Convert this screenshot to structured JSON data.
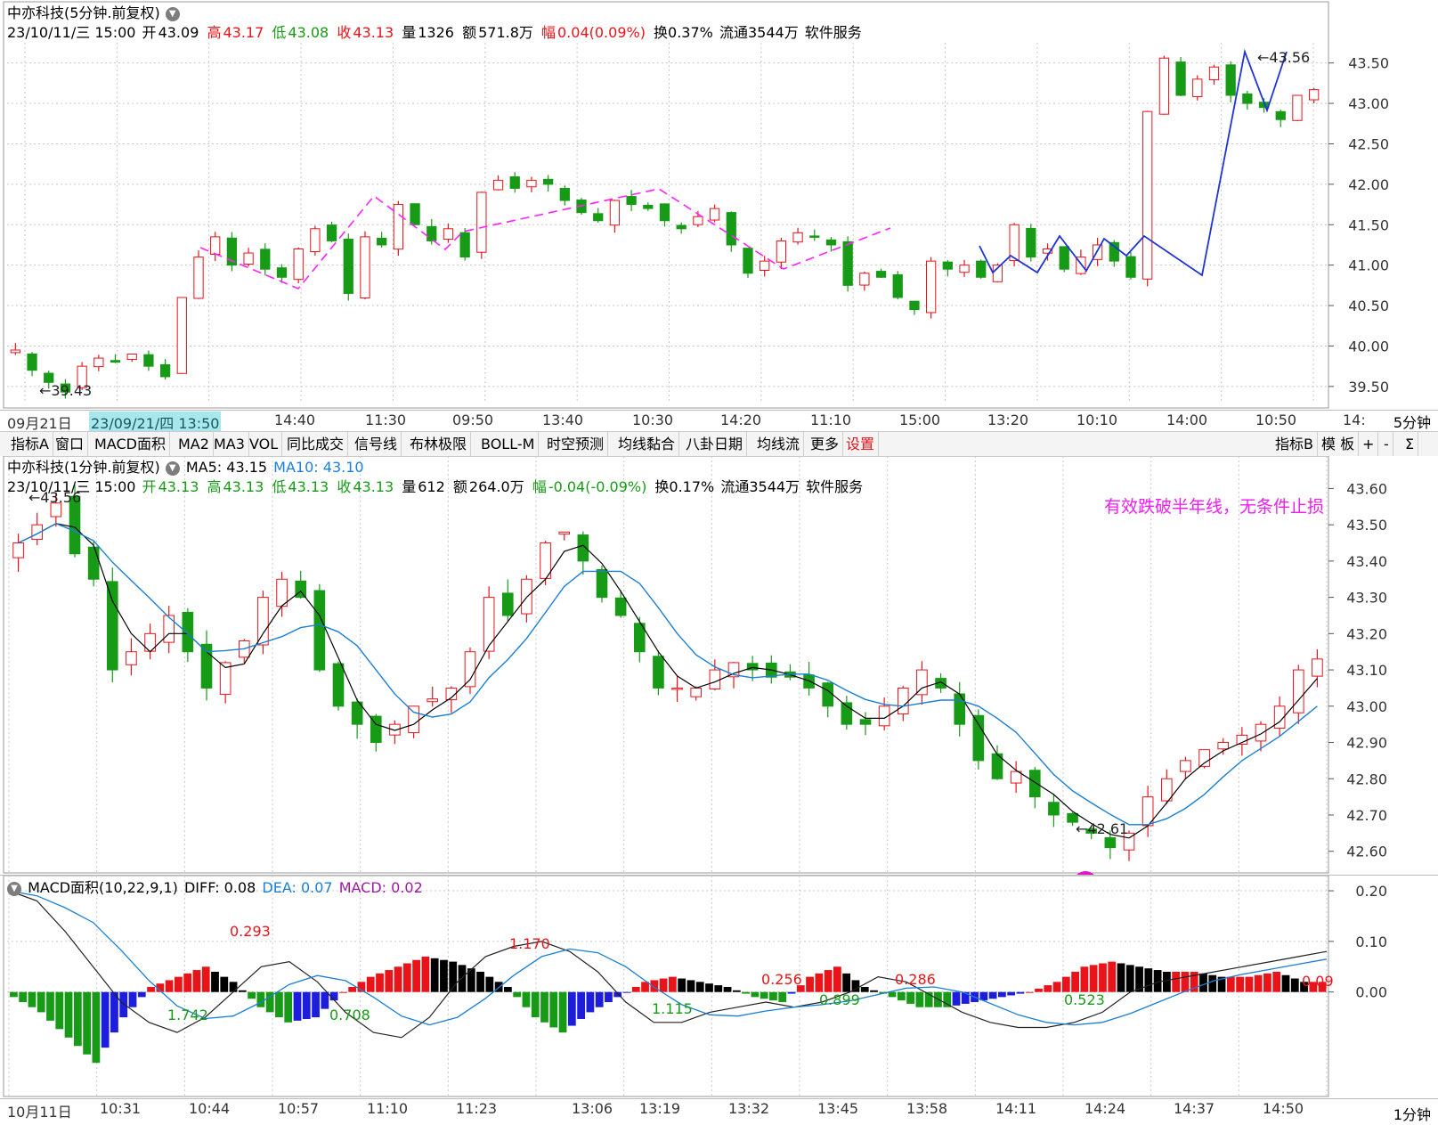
{
  "top_panel": {
    "title": "中亦科技(5分钟.前复权)",
    "info": {
      "date": "23/10/11/三 15:00",
      "open_label": "开",
      "open": "43.09",
      "high_label": "高",
      "high": "43.17",
      "low_label": "低",
      "low": "43.08",
      "close_label": "收",
      "close": "43.13",
      "vol_label": "量",
      "vol": "1326",
      "amt_label": "额",
      "amt": "571.8万",
      "chg_label": "幅",
      "chg": "0.04(0.09%)",
      "turn": "换0.37%",
      "float": "流通3544万",
      "sector": "软件服务"
    },
    "y_ticks": [
      "43.50",
      "43.00",
      "42.50",
      "42.00",
      "41.50",
      "41.00",
      "40.50",
      "40.00",
      "39.50"
    ],
    "high_mark": "43.56",
    "low_mark": "39.43",
    "x_labels": [
      "09月21日",
      "23/09/21/四 13:50",
      "14:40",
      "11:30",
      "09:50",
      "13:40",
      "10:30",
      "14:20",
      "11:10",
      "15:00",
      "13:20",
      "10:10",
      "14:00",
      "10:50",
      "14:"
    ],
    "period": "5分钟"
  },
  "toolbar": {
    "left": [
      "指标A",
      "窗口",
      "MACD面积",
      "MA2",
      "MA3",
      "VOL",
      "同比成交",
      "信号线",
      "布林极限",
      "BOLL-M",
      "时空预测",
      "均线黏合",
      "八卦日期",
      "均线流",
      "更多",
      "设置"
    ],
    "right": [
      "指标B",
      "模 板",
      "+",
      "-",
      "Σ"
    ]
  },
  "mid_panel": {
    "title": "中亦科技(1分钟.前复权)",
    "ma5_label": "MA5: 43.15",
    "ma10_label": "MA10: 43.10",
    "info": {
      "date": "23/10/11/三 15:00",
      "open_label": "开",
      "open": "43.13",
      "high_label": "高",
      "high": "43.13",
      "low_label": "低",
      "low": "43.13",
      "close_label": "收",
      "close": "43.13",
      "vol_label": "量",
      "vol": "612",
      "amt_label": "额",
      "amt": "264.0万",
      "chg_label": "幅",
      "chg": "-0.04(-0.09%)",
      "turn": "换0.17%",
      "float": "流通3544万",
      "sector": "软件服务"
    },
    "annotation": "有效跌破半年线，无条件止损",
    "y_ticks": [
      "43.60",
      "43.50",
      "43.40",
      "43.30",
      "43.20",
      "43.10",
      "43.00",
      "42.90",
      "42.80",
      "42.70",
      "42.60"
    ],
    "high_mark": "43.56",
    "low_mark": "42.61",
    "badge": "1"
  },
  "macd_panel": {
    "label": "MACD面积(10,22,9,1)",
    "diff_label": "DIFF: 0.08",
    "dea_label": "DEA: 0.07",
    "macd_label": "MACD: 0.02",
    "y_ticks": [
      "0.20",
      "0.10",
      "0.00"
    ],
    "area_labels": [
      "0.293",
      "1.742",
      "0.708",
      "1.170",
      "1.115",
      "0.256",
      "0.899",
      "0.286",
      "0.523",
      "0.09"
    ],
    "x_labels": [
      "10月11日",
      "10:31",
      "10:44",
      "10:57",
      "11:10",
      "11:23",
      "13:06",
      "13:19",
      "13:32",
      "13:45",
      "13:58",
      "14:11",
      "14:24",
      "14:37",
      "14:50"
    ],
    "period": "1分钟"
  },
  "colors": {
    "up": "#e8141a",
    "down": "#179b17",
    "ma5": "#000000",
    "ma10": "#1a7fd6",
    "dashed_trend": "#ff22ff",
    "blue_trend": "#1f34d6",
    "macd_neg_blue": "#1d1ddc"
  },
  "chart_data": [
    {
      "type": "candlestick",
      "title": "中亦科技(5分钟.前复权)",
      "ylim": [
        39.3,
        43.75
      ],
      "x_labels": [
        "09月21日",
        "23/09/21/四 13:50",
        "14:40",
        "11:30",
        "09:50",
        "13:40",
        "10:30",
        "14:20",
        "11:10",
        "15:00",
        "13:20",
        "10:10",
        "14:00",
        "10:50",
        "14:"
      ],
      "closes": [
        39.95,
        39.7,
        39.55,
        39.43,
        39.75,
        39.85,
        39.8,
        39.9,
        39.75,
        39.62,
        40.6,
        41.1,
        41.35,
        41.0,
        41.15,
        40.95,
        40.85,
        41.2,
        41.45,
        41.3,
        40.65,
        41.35,
        41.25,
        41.75,
        41.5,
        41.3,
        41.45,
        41.1,
        41.9,
        42.05,
        41.95,
        42.05,
        42.0,
        41.8,
        41.65,
        41.55,
        41.8,
        41.75,
        41.7,
        41.55,
        41.45,
        41.6,
        41.7,
        41.25,
        40.9,
        41.05,
        41.3,
        41.4,
        41.35,
        41.25,
        40.75,
        40.9,
        40.85,
        40.6,
        40.45,
        41.05,
        40.95,
        41.0,
        40.85,
        41.0,
        41.5,
        41.1,
        41.2,
        40.95,
        41.1,
        41.25,
        41.05,
        40.85,
        42.9,
        43.56,
        43.1,
        43.3,
        43.45,
        43.1,
        43.0,
        42.95,
        42.8,
        43.1,
        43.17
      ]
    },
    {
      "type": "candlestick",
      "title": "中亦科技(1分钟.前复权)",
      "ylim": [
        42.56,
        43.66
      ],
      "series": [
        {
          "name": "MA5"
        },
        {
          "name": "MA10"
        }
      ],
      "x_labels": [
        "10月11日",
        "10:31",
        "10:44",
        "10:57",
        "11:10",
        "11:23",
        "13:06",
        "13:19",
        "13:32",
        "13:45",
        "13:58",
        "14:11",
        "14:24",
        "14:37",
        "14:50"
      ],
      "closes": [
        43.45,
        43.5,
        43.56,
        43.42,
        43.35,
        43.1,
        43.15,
        43.2,
        43.25,
        43.15,
        43.05,
        43.12,
        43.18,
        43.3,
        43.35,
        43.3,
        43.1,
        43.0,
        42.95,
        42.9,
        42.95,
        43.0,
        43.02,
        43.05,
        43.15,
        43.3,
        43.25,
        43.35,
        43.45,
        43.48,
        43.4,
        43.3,
        43.25,
        43.15,
        43.05,
        43.05,
        43.05,
        43.1,
        43.12,
        43.1,
        43.08,
        43.08,
        43.05,
        43.0,
        42.95,
        42.95,
        43.0,
        43.05,
        43.1,
        43.05,
        42.95,
        42.85,
        42.8,
        42.82,
        42.75,
        42.7,
        42.68,
        42.65,
        42.61,
        42.65,
        42.75,
        42.8,
        42.85,
        42.88,
        42.9,
        42.92,
        42.95,
        43.0,
        43.1,
        43.13
      ]
    },
    {
      "type": "bar",
      "title": "MACD面积(10,22,9,1)",
      "ylim": [
        -0.21,
        0.23
      ],
      "series_names": [
        "DIFF",
        "DEA",
        "MACD"
      ],
      "diff": [
        0.2,
        0.18,
        0.12,
        0.05,
        -0.02,
        -0.06,
        -0.08,
        -0.05,
        0.0,
        0.05,
        0.06,
        0.02,
        -0.04,
        -0.08,
        -0.09,
        -0.05,
        0.02,
        0.07,
        0.09,
        0.1,
        0.08,
        0.04,
        -0.02,
        -0.06,
        -0.06,
        -0.04,
        -0.03,
        -0.02,
        -0.03,
        -0.02,
        0.0,
        0.03,
        0.02,
        -0.01,
        -0.04,
        -0.06,
        -0.07,
        -0.07,
        -0.06,
        -0.04,
        0.0,
        0.02,
        0.03,
        0.04,
        0.05,
        0.06,
        0.07,
        0.08
      ],
      "macd_hist": [
        -0.01,
        -0.04,
        -0.09,
        -0.14,
        -0.05,
        0.01,
        0.03,
        0.05,
        0.02,
        -0.03,
        -0.06,
        -0.05,
        0.0,
        0.03,
        0.05,
        0.07,
        0.06,
        0.04,
        0.01,
        -0.05,
        -0.08,
        -0.04,
        -0.01,
        0.02,
        0.03,
        0.02,
        0.01,
        -0.01,
        -0.02,
        0.03,
        0.05,
        0.01,
        -0.01,
        -0.03,
        -0.03,
        -0.02,
        -0.01,
        0.0,
        0.02,
        0.05,
        0.06,
        0.05,
        0.04,
        0.04,
        0.03,
        0.03,
        0.04,
        0.02
      ]
    }
  ]
}
